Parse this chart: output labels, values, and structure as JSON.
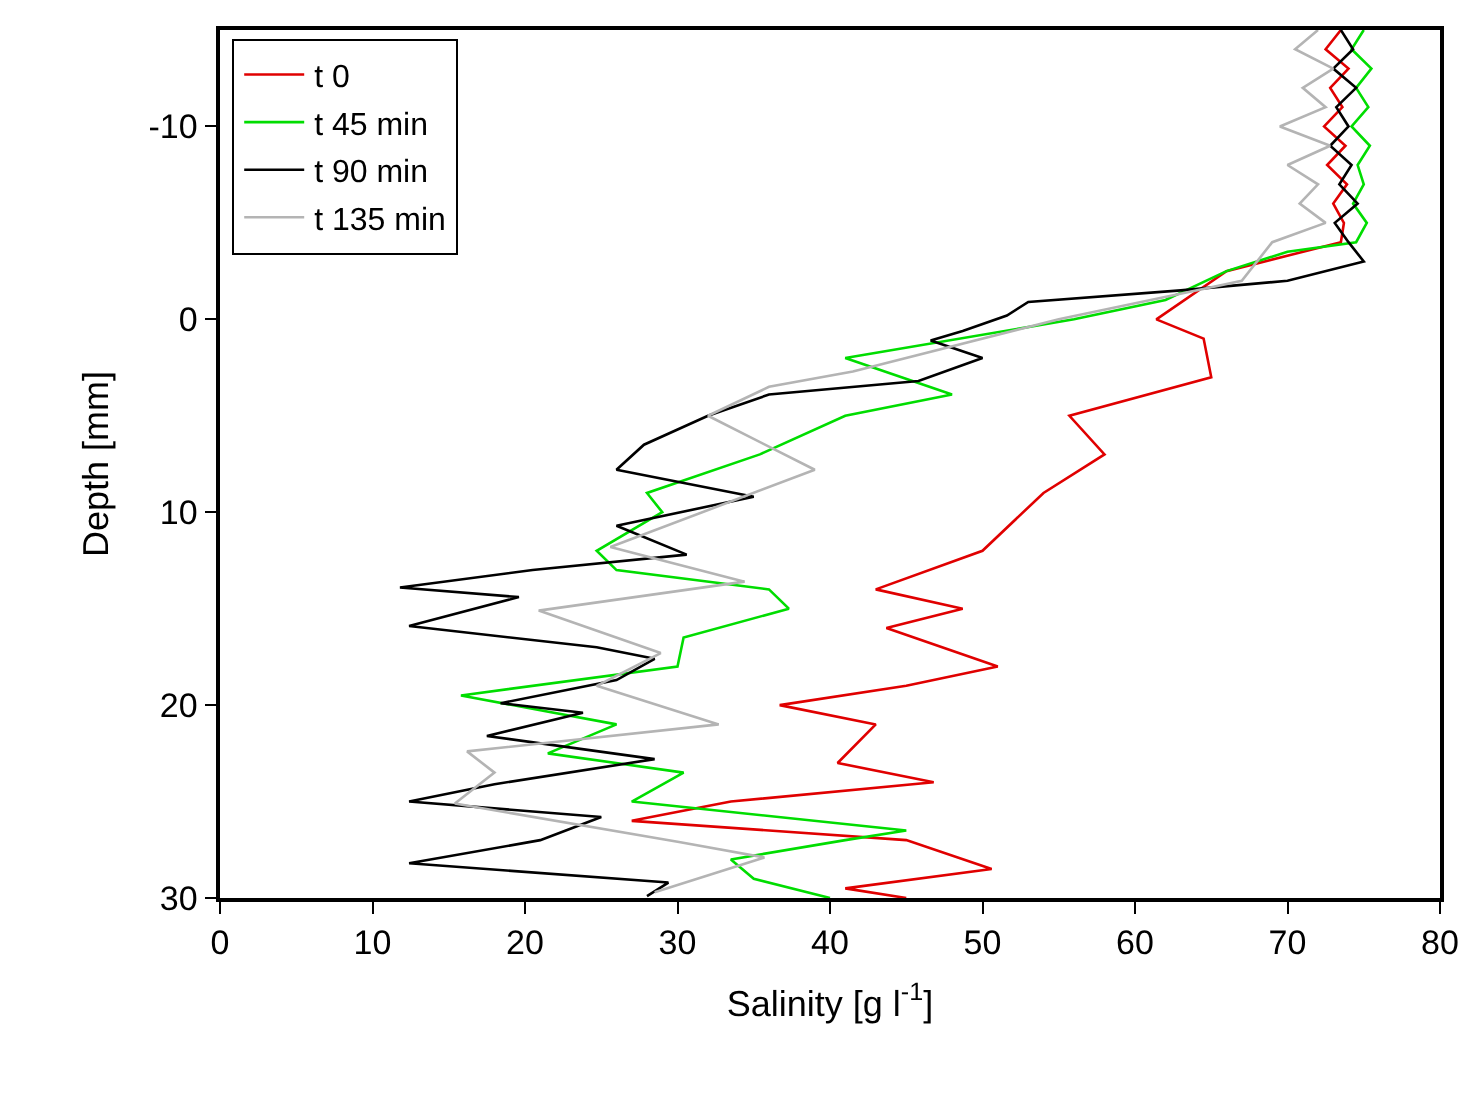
{
  "chart_data": {
    "type": "line",
    "xlabel": "Salinity [g l$^{-1}$]",
    "ylabel": "Depth [mm]",
    "xlim": [
      0,
      80
    ],
    "xticks": [
      0,
      10,
      20,
      30,
      40,
      50,
      60,
      70,
      80
    ],
    "ylim": [
      30,
      -15
    ],
    "yticks": [
      -10,
      0,
      10,
      20,
      30
    ],
    "legend": "top left",
    "marker": "none",
    "line_style": "solid",
    "series": [
      {
        "name": "t 0",
        "color": "#e00000",
        "x": [
          73.5,
          72.5,
          74,
          72.8,
          73.6,
          72.4,
          73.8,
          72.6,
          73.9,
          73,
          73.7,
          73.5,
          66,
          61.4,
          64.5,
          65,
          55.7,
          58,
          54,
          50,
          43,
          48.7,
          43.7,
          51,
          45,
          36.7,
          43,
          40.5,
          46.8,
          33.5,
          27,
          45,
          50.6,
          41,
          45
        ],
        "values": [
          -15,
          -14,
          -13,
          -12,
          -11,
          -10,
          -9,
          -8,
          -7,
          -6,
          -5,
          -4,
          -2.5,
          0,
          1,
          3,
          5,
          7,
          9,
          12,
          14,
          15,
          16,
          18,
          19,
          20,
          21,
          23,
          24,
          25,
          26,
          27,
          28.5,
          29.5,
          30
        ]
      },
      {
        "name": "t 45 min",
        "color": "#00dd00",
        "x": [
          75,
          74.2,
          75.5,
          74.5,
          75.3,
          74.2,
          75.4,
          74.6,
          75,
          74.3,
          75.2,
          74.5,
          70,
          66,
          62,
          56,
          41,
          48,
          41,
          35.4,
          28,
          29,
          24.7,
          26,
          36,
          37.3,
          30.4,
          30,
          15.8,
          26,
          21.5,
          30.4,
          27,
          45,
          41,
          33.5,
          35,
          40
        ],
        "values": [
          -15,
          -14,
          -13,
          -12,
          -11,
          -10,
          -9,
          -8,
          -7,
          -6,
          -5,
          -4,
          -3.5,
          -2.5,
          -1,
          0,
          2,
          3.9,
          5,
          7,
          9,
          10,
          12,
          13,
          14,
          15,
          16.5,
          18,
          19.5,
          21,
          22.5,
          23.5,
          25,
          26.5,
          27,
          28,
          29,
          30
        ]
      },
      {
        "name": "t 90 min",
        "color": "#000000",
        "x": [
          73.5,
          74.3,
          73,
          74.5,
          73.2,
          74,
          72.8,
          74.2,
          73.4,
          74.6,
          73.1,
          74,
          75,
          70,
          63,
          53,
          51.6,
          48.7,
          46.6,
          50,
          45.8,
          36,
          32,
          27.8,
          26,
          35,
          26,
          30.6,
          20.5,
          11.8,
          19.6,
          12.4,
          24.7,
          28.5,
          26,
          18.4,
          23.8,
          17.5,
          28.5,
          18,
          12.4,
          25,
          21,
          12.4,
          29.4,
          28
        ],
        "values": [
          -15,
          -14,
          -13,
          -12,
          -11,
          -10,
          -9,
          -8,
          -7,
          -6,
          -5,
          -4,
          -3,
          -2,
          -1.5,
          -0.9,
          -0.2,
          0.6,
          1.1,
          2,
          3.2,
          3.9,
          5,
          6.5,
          7.8,
          9.2,
          10.7,
          12.2,
          13,
          13.9,
          14.4,
          15.9,
          17,
          17.6,
          18.7,
          19.9,
          20.4,
          21.6,
          22.8,
          24.1,
          25,
          25.8,
          27,
          28.2,
          29.2,
          29.9
        ]
      },
      {
        "name": "t 135 min",
        "color": "#b4b4b4",
        "x": [
          72,
          70.5,
          73,
          71,
          72.5,
          69.5,
          72.8,
          70,
          72,
          70.8,
          72.5,
          69,
          67,
          64,
          55,
          41.5,
          36,
          32,
          39,
          25.6,
          34.4,
          20.9,
          28.9,
          24.7,
          32.7,
          16.2,
          18,
          15.4,
          30.1,
          35.7,
          28.5
        ],
        "values": [
          -15,
          -14,
          -13,
          -12,
          -11,
          -10,
          -9,
          -8,
          -7,
          -6,
          -5,
          -4,
          -2,
          -1.5,
          0,
          2.7,
          3.5,
          5,
          7.8,
          11.8,
          13.6,
          15.1,
          17.3,
          19,
          21,
          22.4,
          23.5,
          25.1,
          27.1,
          27.9,
          29.7
        ]
      }
    ]
  }
}
